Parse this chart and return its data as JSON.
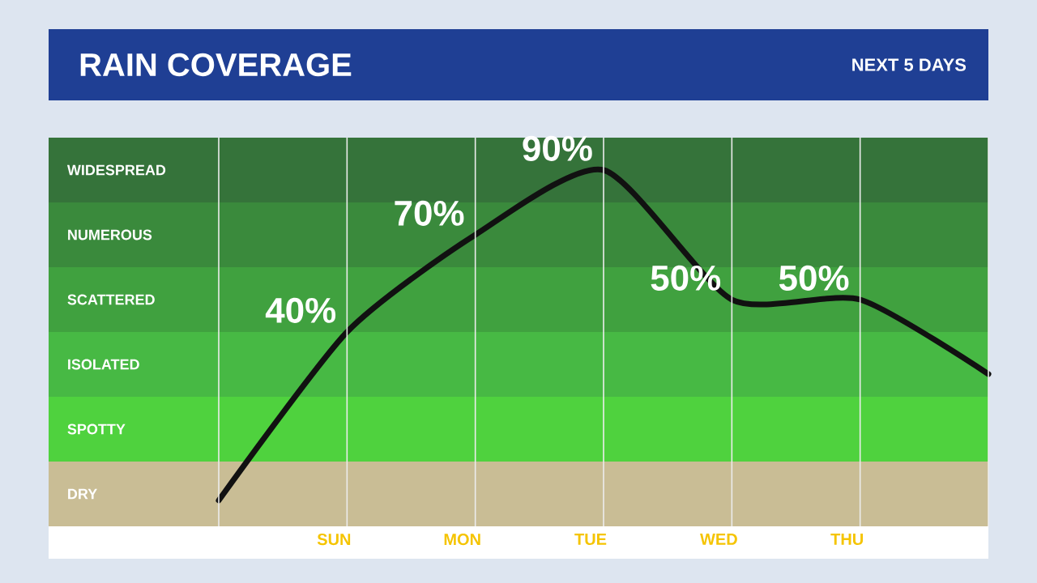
{
  "chart_data": {
    "type": "line",
    "title": "RAIN COVERAGE",
    "subtitle": "NEXT 5 DAYS",
    "categories": [
      null,
      "SUN",
      "MON",
      "TUE",
      "WED",
      "THU",
      null
    ],
    "series": [
      {
        "color": "#111111",
        "values": [
          -12,
          40,
          70,
          90,
          50,
          50,
          27
        ],
        "value_labels": [
          null,
          "40%",
          "70%",
          "90%",
          "50%",
          "50%",
          null
        ]
      }
    ],
    "ylim": [
      -20,
      100
    ],
    "tick_labels": "x",
    "grid": "x",
    "bands": [
      {
        "axis": "y",
        "from": -20,
        "to": 0,
        "label": "DRY",
        "color": "#c9bd95"
      },
      {
        "axis": "y",
        "from": 0,
        "to": 20,
        "label": "SPOTTY",
        "color": "#4fd23e"
      },
      {
        "axis": "y",
        "from": 20,
        "to": 40,
        "label": "ISOLATED",
        "color": "#47b944"
      },
      {
        "axis": "y",
        "from": 40,
        "to": 60,
        "label": "SCATTERED",
        "color": "#40a13f"
      },
      {
        "axis": "y",
        "from": 60,
        "to": 80,
        "label": "NUMEROUS",
        "color": "#3a8a3c"
      },
      {
        "axis": "y",
        "from": 80,
        "to": 100,
        "label": "WIDESPREAD",
        "color": "#35733a"
      }
    ]
  }
}
